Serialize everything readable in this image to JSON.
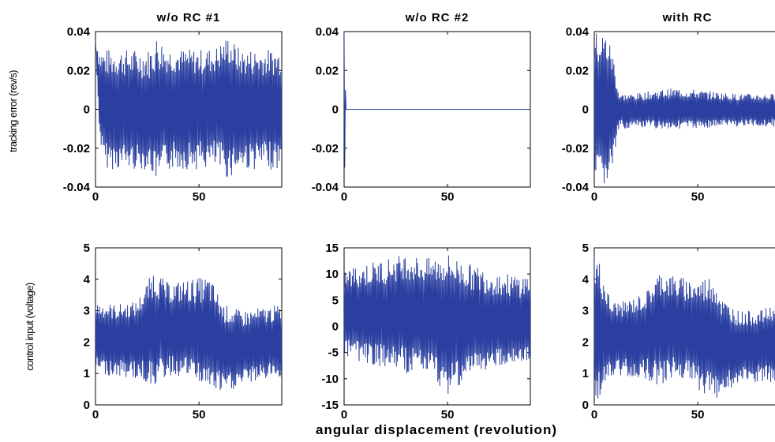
{
  "figure": {
    "xlabel": "angular displacement (revolution)",
    "row_ylabels": [
      "tracking error (rev/s)",
      "control input (voltage)"
    ],
    "line_color": "#2a3fa0"
  },
  "chart_data": [
    {
      "type": "line",
      "title": "w/o RC #1",
      "ylabel": "tracking error (rev/s)",
      "xlim": [
        0,
        90
      ],
      "ylim": [
        -0.04,
        0.04
      ],
      "xticks": [
        0,
        50
      ],
      "yticks": [
        0.04,
        0.02,
        0,
        -0.02,
        -0.04
      ],
      "ytick_labels": [
        "0.04",
        "0.02",
        "0",
        "-0.02",
        "-0.04"
      ],
      "series": [
        {
          "x": [
            0,
            2,
            4,
            8,
            14,
            20,
            26,
            30,
            34,
            40,
            46,
            52,
            58,
            64,
            70,
            76,
            82,
            88,
            90
          ],
          "upper_envelope": [
            0.04,
            0.032,
            0.031,
            0.031,
            0.031,
            0.031,
            0.031,
            0.039,
            0.032,
            0.031,
            0.031,
            0.031,
            0.032,
            0.038,
            0.031,
            0.031,
            0.031,
            0.031,
            0.031
          ],
          "lower_envelope": [
            0.04,
            -0.015,
            -0.03,
            -0.031,
            -0.031,
            -0.031,
            -0.031,
            -0.038,
            -0.032,
            -0.031,
            -0.031,
            -0.031,
            -0.031,
            -0.036,
            -0.031,
            -0.031,
            -0.031,
            -0.031,
            -0.03
          ],
          "baseline": [
            0.02,
            0.004,
            0.0,
            0.0,
            0.0,
            -0.002,
            -0.003,
            -0.004,
            0.003,
            0.004,
            0.002,
            0.002,
            0.003,
            0.005,
            0.0,
            0.001,
            0.001,
            0.001,
            0.001
          ]
        }
      ]
    },
    {
      "type": "line",
      "title": "w/o RC #2",
      "ylabel": "",
      "xlim": [
        0,
        90
      ],
      "ylim": [
        -0.04,
        0.04
      ],
      "xticks": [
        0,
        50
      ],
      "yticks": [
        0.04,
        0.02,
        0,
        -0.02,
        -0.04
      ],
      "ytick_labels": [
        "0.04",
        "0.02",
        "0",
        "-0.02",
        "-0.04"
      ],
      "series": [
        {
          "x": [
            0,
            0.3,
            0.6,
            1,
            2,
            90
          ],
          "y": [
            0.04,
            -0.03,
            0.01,
            0.0,
            0.0,
            0.0
          ]
        }
      ]
    },
    {
      "type": "line",
      "title": "with RC",
      "ylabel": "",
      "xlim": [
        0,
        90
      ],
      "ylim": [
        -0.04,
        0.04
      ],
      "xticks": [
        0,
        50
      ],
      "yticks": [
        0.04,
        0.02,
        0,
        -0.02,
        -0.04
      ],
      "ytick_labels": [
        "0.04",
        "0.02",
        "0",
        "-0.02",
        "-0.04"
      ],
      "series": [
        {
          "x": [
            0,
            3,
            6,
            9,
            12,
            20,
            30,
            40,
            50,
            60,
            70,
            80,
            90
          ],
          "upper_envelope": [
            0.04,
            0.04,
            0.04,
            0.03,
            0.008,
            0.008,
            0.01,
            0.011,
            0.01,
            0.009,
            0.008,
            0.008,
            0.008
          ],
          "lower_envelope": [
            -0.04,
            -0.04,
            -0.04,
            -0.03,
            -0.01,
            -0.01,
            -0.01,
            -0.01,
            -0.01,
            -0.009,
            -0.009,
            -0.009,
            -0.009
          ],
          "baseline": [
            0,
            0,
            0,
            0,
            0,
            0,
            0,
            0,
            0,
            0,
            0,
            0,
            0
          ]
        }
      ]
    },
    {
      "type": "line",
      "title": "",
      "ylabel": "control input (voltage)",
      "xlim": [
        0,
        90
      ],
      "ylim": [
        0,
        5
      ],
      "xticks": [
        0,
        50
      ],
      "yticks": [
        5,
        4,
        3,
        2,
        1,
        0
      ],
      "ytick_labels": [
        "5",
        "4",
        "3",
        "2",
        "1",
        "0"
      ],
      "series": [
        {
          "x": [
            0,
            10,
            20,
            28,
            35,
            45,
            55,
            62,
            70,
            80,
            90
          ],
          "upper_envelope": [
            3.3,
            3.2,
            3.3,
            4.3,
            3.9,
            4.0,
            4.1,
            3.2,
            3.0,
            3.1,
            3.2
          ],
          "lower_envelope": [
            1.0,
            0.9,
            0.8,
            0.6,
            0.9,
            0.9,
            0.5,
            0.3,
            0.6,
            0.8,
            0.9
          ],
          "baseline": [
            2.2,
            2.1,
            2.2,
            2.4,
            2.4,
            2.3,
            2.2,
            1.9,
            1.8,
            1.9,
            2.0
          ]
        }
      ]
    },
    {
      "type": "line",
      "title": "",
      "ylabel": "",
      "xlim": [
        0,
        90
      ],
      "ylim": [
        -15,
        15
      ],
      "xticks": [
        0,
        50
      ],
      "yticks": [
        15,
        10,
        5,
        0,
        -5,
        -10,
        -15
      ],
      "ytick_labels": [
        "15",
        "10",
        "5",
        "0",
        "-5",
        "-10",
        "-15"
      ],
      "series": [
        {
          "x": [
            0,
            10,
            20,
            30,
            40,
            50,
            60,
            70,
            80,
            90
          ],
          "upper_envelope": [
            11,
            12,
            13,
            14,
            13,
            14,
            12,
            11,
            10,
            10
          ],
          "lower_envelope": [
            -6,
            -7,
            -8,
            -9,
            -9,
            -13,
            -10,
            -8,
            -7,
            -7
          ],
          "baseline": [
            2,
            2,
            2,
            3,
            2,
            1,
            1,
            0,
            0,
            0
          ]
        }
      ]
    },
    {
      "type": "line",
      "title": "",
      "ylabel": "",
      "xlim": [
        0,
        90
      ],
      "ylim": [
        0,
        5
      ],
      "xticks": [
        0,
        50
      ],
      "yticks": [
        5,
        4,
        3,
        2,
        1,
        0
      ],
      "ytick_labels": [
        "5",
        "4",
        "3",
        "2",
        "1",
        "0"
      ],
      "series": [
        {
          "x": [
            0,
            3,
            8,
            15,
            25,
            32,
            40,
            50,
            58,
            62,
            70,
            80,
            90
          ],
          "upper_envelope": [
            5,
            4.5,
            3.3,
            3.3,
            3.6,
            4.3,
            4.1,
            4.0,
            4.2,
            3.4,
            3.0,
            3.0,
            3.3
          ],
          "lower_envelope": [
            0,
            0.3,
            0.8,
            0.9,
            0.8,
            0.6,
            0.9,
            0.5,
            0.1,
            0.4,
            0.6,
            0.7,
            0.5
          ],
          "baseline": [
            2.3,
            2.2,
            2.2,
            2.2,
            2.3,
            2.5,
            2.4,
            2.3,
            2.1,
            1.9,
            1.9,
            2.0,
            2.1
          ]
        }
      ]
    }
  ]
}
